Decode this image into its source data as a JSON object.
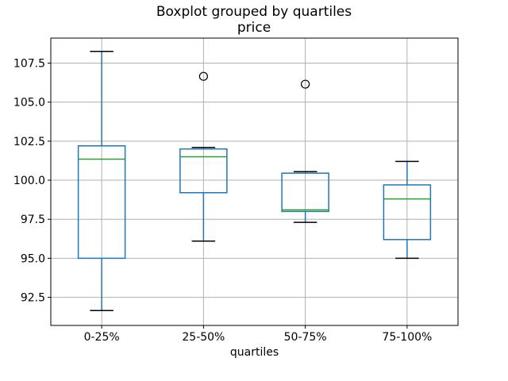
{
  "chart_data": {
    "type": "boxplot",
    "suptitle": "Boxplot grouped by quartiles",
    "title": "price",
    "xlabel": "quartiles",
    "ylabel": "",
    "categories": [
      "0-25%",
      "25-50%",
      "50-75%",
      "75-100%"
    ],
    "x_positions": [
      1,
      2,
      3,
      4
    ],
    "xlim": [
      0.5,
      4.5
    ],
    "ylim": [
      90.7,
      109.1
    ],
    "yticks": [
      {
        "v": 92.5,
        "label": "92.5"
      },
      {
        "v": 95.0,
        "label": "95.0"
      },
      {
        "v": 97.5,
        "label": "97.5"
      },
      {
        "v": 100.0,
        "label": "100.0"
      },
      {
        "v": 102.5,
        "label": "102.5"
      },
      {
        "v": 105.0,
        "label": "105.0"
      },
      {
        "v": 107.5,
        "label": "107.5"
      }
    ],
    "grid": true,
    "box_width": 0.46,
    "series": [
      {
        "category": "0-25%",
        "whisker_low": 91.65,
        "q1": 95.0,
        "median": 101.35,
        "q3": 102.2,
        "whisker_high": 108.25,
        "fliers": []
      },
      {
        "category": "25-50%",
        "whisker_low": 96.1,
        "q1": 99.2,
        "median": 101.5,
        "q3": 102.0,
        "whisker_high": 102.1,
        "fliers": [
          106.65
        ]
      },
      {
        "category": "50-75%",
        "whisker_low": 97.3,
        "q1": 98.0,
        "median": 98.1,
        "q3": 100.45,
        "whisker_high": 100.55,
        "fliers": [
          106.15
        ]
      },
      {
        "category": "75-100%",
        "whisker_low": 95.0,
        "q1": 96.2,
        "median": 98.8,
        "q3": 99.7,
        "whisker_high": 101.2,
        "fliers": []
      }
    ],
    "colors": {
      "box": "#1f77b4",
      "whisker": "#1f77b4",
      "median": "#2ca02c",
      "cap": "#000000",
      "flier": "#000000",
      "grid": "#b0b0b0",
      "axis": "#000000",
      "text": "#000000",
      "background": "#ffffff"
    }
  }
}
